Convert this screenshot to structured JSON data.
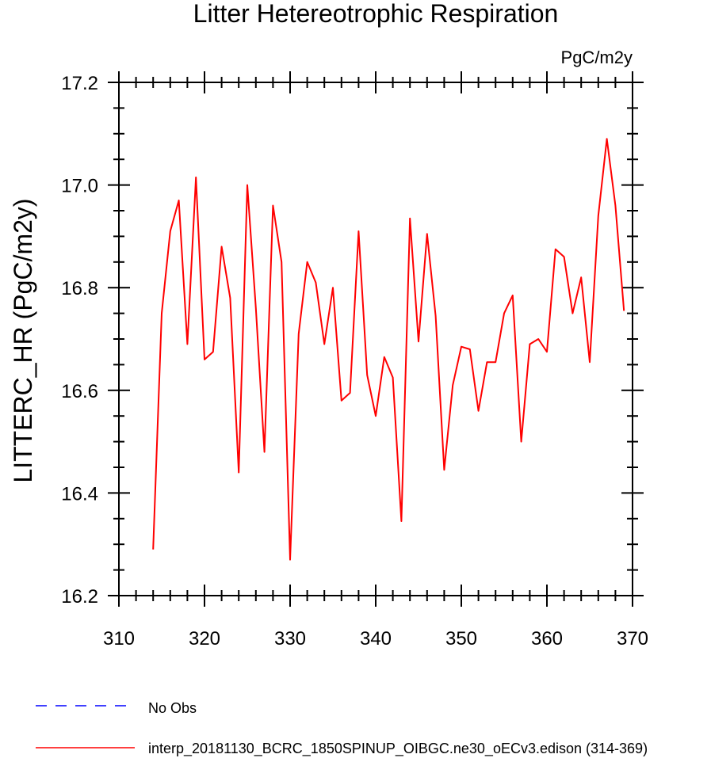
{
  "chart_data": {
    "type": "line",
    "title": "Litter Hetereotrophic Respiration",
    "units": "PgC/m2y",
    "xlabel": "",
    "ylabel": "LITTERC_HR  (PgC/m2y)",
    "xlim": [
      310,
      370
    ],
    "ylim": [
      16.2,
      17.2
    ],
    "x_ticks": [
      310,
      320,
      330,
      340,
      350,
      360,
      370
    ],
    "y_ticks": [
      "16.2",
      "16.4",
      "16.6",
      "16.8",
      "17.0",
      "17.2"
    ],
    "series": [
      {
        "name": "interp_20181130_BCRC_1850SPINUP_OIBGC.ne30_oECv3.edison (314-369)",
        "color": "#ff0000",
        "x": [
          314,
          315,
          316,
          317,
          318,
          319,
          320,
          321,
          322,
          323,
          324,
          325,
          326,
          327,
          328,
          329,
          330,
          331,
          332,
          333,
          334,
          335,
          336,
          337,
          338,
          339,
          340,
          341,
          342,
          343,
          344,
          345,
          346,
          347,
          348,
          349,
          350,
          351,
          352,
          353,
          354,
          355,
          356,
          357,
          358,
          359,
          360,
          361,
          362,
          363,
          364,
          365,
          366,
          367,
          368,
          369
        ],
        "y": [
          16.29,
          16.75,
          16.91,
          16.97,
          16.69,
          17.015,
          16.66,
          16.675,
          16.88,
          16.78,
          16.44,
          17.0,
          16.76,
          16.48,
          16.96,
          16.85,
          16.27,
          16.71,
          16.85,
          16.81,
          16.69,
          16.8,
          16.58,
          16.595,
          16.91,
          16.63,
          16.55,
          16.665,
          16.625,
          16.345,
          16.935,
          16.695,
          16.905,
          16.745,
          16.445,
          16.61,
          16.685,
          16.68,
          16.56,
          16.655,
          16.655,
          16.75,
          16.785,
          16.5,
          16.69,
          16.7,
          16.675,
          16.875,
          16.86,
          16.75,
          16.82,
          16.655,
          16.94,
          17.09,
          16.96,
          16.755
        ]
      }
    ],
    "legend": {
      "placement": "bottom",
      "entries": [
        {
          "label": "No Obs",
          "color": "#0000ff",
          "style": "dashed"
        },
        {
          "label": "interp_20181130_BCRC_1850SPINUP_OIBGC.ne30_oECv3.edison (314-369)",
          "color": "#ff0000",
          "style": "solid"
        }
      ]
    }
  }
}
